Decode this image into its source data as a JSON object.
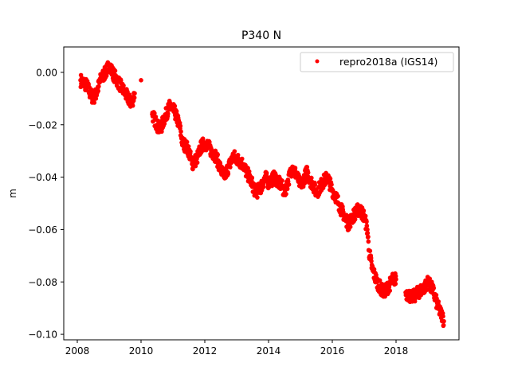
{
  "chart_data": {
    "type": "scatter",
    "title": "P340 N",
    "xlabel": "",
    "ylabel": "m",
    "xlim": [
      2007.575,
      2019.975
    ],
    "ylim": [
      -0.1021,
      0.0097
    ],
    "xticks": [
      2008,
      2010,
      2012,
      2014,
      2016,
      2018
    ],
    "xtick_labels": [
      "2008",
      "2010",
      "2012",
      "2014",
      "2016",
      "2018"
    ],
    "yticks": [
      0.0,
      -0.02,
      -0.04,
      -0.06,
      -0.08,
      -0.1
    ],
    "ytick_labels": [
      "0.00",
      "−0.02",
      "−0.04",
      "−0.06",
      "−0.08",
      "−0.10"
    ],
    "grid": false,
    "legend": {
      "placement": "top-right",
      "entries": [
        "repro2018a (IGS14)"
      ]
    },
    "series": [
      {
        "name": "repro2018a (IGS14)",
        "color": "#ff0000",
        "marker": "dot",
        "points": [
          [
            2008.1,
            -0.003
          ],
          [
            2008.2,
            -0.004
          ],
          [
            2008.3,
            -0.005
          ],
          [
            2008.4,
            -0.008
          ],
          [
            2008.5,
            -0.01
          ],
          [
            2008.6,
            -0.008
          ],
          [
            2008.75,
            -0.002
          ],
          [
            2008.9,
            0.0
          ],
          [
            2009.0,
            0.003
          ],
          [
            2009.1,
            0.0
          ],
          [
            2009.25,
            -0.003
          ],
          [
            2009.4,
            -0.006
          ],
          [
            2009.5,
            -0.008
          ],
          [
            2009.6,
            -0.01
          ],
          [
            2009.7,
            -0.012
          ],
          [
            2009.8,
            -0.008
          ],
          [
            2010.0,
            -0.003
          ],
          [
            2010.35,
            -0.016
          ],
          [
            2010.5,
            -0.02
          ],
          [
            2010.6,
            -0.022
          ],
          [
            2010.75,
            -0.017
          ],
          [
            2010.9,
            -0.013
          ],
          [
            2011.05,
            -0.015
          ],
          [
            2011.2,
            -0.02
          ],
          [
            2011.3,
            -0.027
          ],
          [
            2011.4,
            -0.028
          ],
          [
            2011.5,
            -0.03
          ],
          [
            2011.6,
            -0.035
          ],
          [
            2011.75,
            -0.033
          ],
          [
            2011.9,
            -0.028
          ],
          [
            2012.0,
            -0.027
          ],
          [
            2012.1,
            -0.028
          ],
          [
            2012.2,
            -0.03
          ],
          [
            2012.35,
            -0.032
          ],
          [
            2012.5,
            -0.037
          ],
          [
            2012.6,
            -0.04
          ],
          [
            2012.75,
            -0.036
          ],
          [
            2012.9,
            -0.032
          ],
          [
            2013.0,
            -0.033
          ],
          [
            2013.1,
            -0.034
          ],
          [
            2013.2,
            -0.035
          ],
          [
            2013.3,
            -0.038
          ],
          [
            2013.4,
            -0.04
          ],
          [
            2013.5,
            -0.043
          ],
          [
            2013.6,
            -0.046
          ],
          [
            2013.75,
            -0.044
          ],
          [
            2013.9,
            -0.04
          ],
          [
            2014.0,
            -0.042
          ],
          [
            2014.1,
            -0.041
          ],
          [
            2014.2,
            -0.04
          ],
          [
            2014.3,
            -0.042
          ],
          [
            2014.4,
            -0.043
          ],
          [
            2014.5,
            -0.046
          ],
          [
            2014.6,
            -0.042
          ],
          [
            2014.75,
            -0.036
          ],
          [
            2014.9,
            -0.04
          ],
          [
            2015.0,
            -0.043
          ],
          [
            2015.1,
            -0.041
          ],
          [
            2015.2,
            -0.038
          ],
          [
            2015.3,
            -0.041
          ],
          [
            2015.4,
            -0.043
          ],
          [
            2015.5,
            -0.046
          ],
          [
            2015.6,
            -0.044
          ],
          [
            2015.7,
            -0.042
          ],
          [
            2015.85,
            -0.04
          ],
          [
            2016.0,
            -0.045
          ],
          [
            2016.1,
            -0.047
          ],
          [
            2016.2,
            -0.05
          ],
          [
            2016.3,
            -0.053
          ],
          [
            2016.4,
            -0.055
          ],
          [
            2016.5,
            -0.058
          ],
          [
            2016.6,
            -0.056
          ],
          [
            2016.7,
            -0.054
          ],
          [
            2016.85,
            -0.052
          ],
          [
            2017.0,
            -0.055
          ],
          [
            2017.1,
            -0.06
          ],
          [
            2017.15,
            -0.068
          ],
          [
            2017.25,
            -0.075
          ],
          [
            2017.4,
            -0.08
          ],
          [
            2017.5,
            -0.082
          ],
          [
            2017.6,
            -0.084
          ],
          [
            2017.75,
            -0.082
          ],
          [
            2017.9,
            -0.079
          ],
          [
            2018.0,
            -0.079
          ],
          [
            2018.3,
            -0.084
          ],
          [
            2018.4,
            -0.085
          ],
          [
            2018.5,
            -0.086
          ],
          [
            2018.6,
            -0.085
          ],
          [
            2018.7,
            -0.084
          ],
          [
            2018.8,
            -0.083
          ],
          [
            2018.9,
            -0.082
          ],
          [
            2019.0,
            -0.08
          ],
          [
            2019.15,
            -0.083
          ],
          [
            2019.3,
            -0.089
          ],
          [
            2019.4,
            -0.092
          ],
          [
            2019.45,
            -0.093
          ],
          [
            2019.5,
            -0.095
          ]
        ]
      }
    ]
  }
}
